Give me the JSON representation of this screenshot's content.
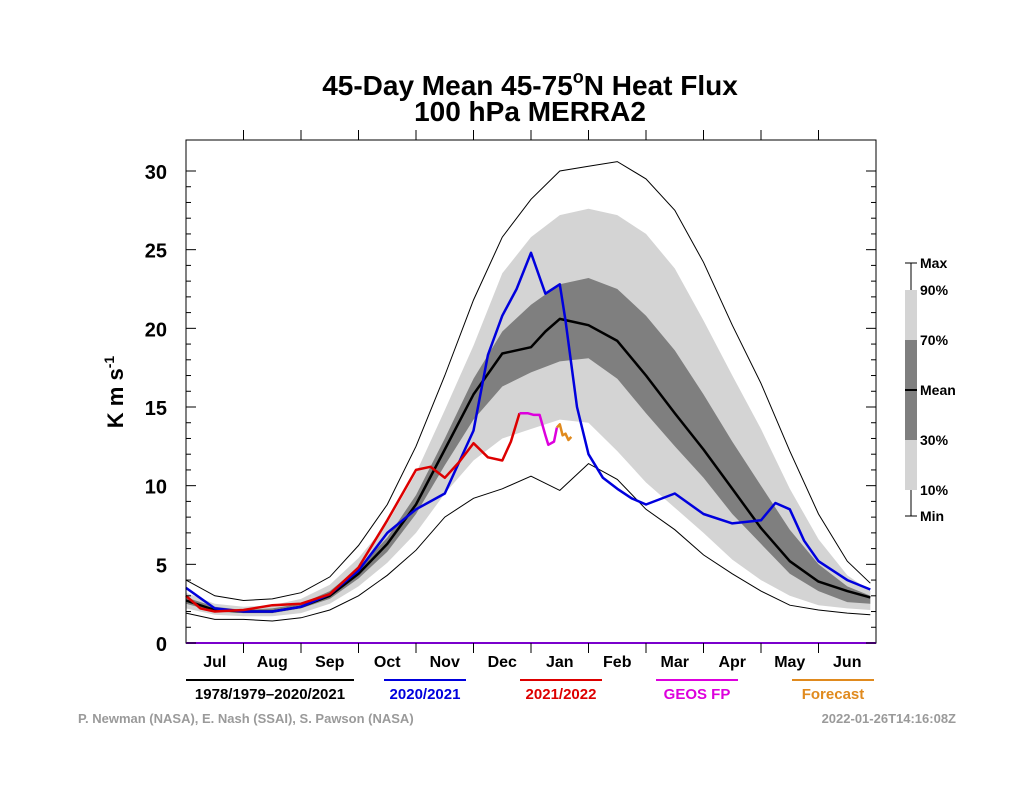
{
  "chart_data": {
    "type": "line",
    "title": "45-Day Mean 45-75",
    "title_sup": "o",
    "title_tail": "N Heat Flux",
    "subtitle": "100 hPa   MERRA2",
    "ylabel": "K m s",
    "ylabel_sup": "-1",
    "ylim": [
      0,
      31
    ],
    "yticks": [
      "0",
      "5",
      "10",
      "15",
      "20",
      "25",
      "30"
    ],
    "months": [
      "Jul",
      "Aug",
      "Sep",
      "Oct",
      "Nov",
      "Dec",
      "Jan",
      "Feb",
      "Mar",
      "Apr",
      "May",
      "Jun"
    ],
    "x_unit": "month index (0 = start of Jul, 12 = end of Jun)",
    "envelope": {
      "x": [
        0,
        0.5,
        1,
        1.5,
        2,
        2.5,
        3,
        3.5,
        4,
        4.5,
        5,
        5.5,
        6,
        6.5,
        7,
        7.5,
        8,
        8.5,
        9,
        9.5,
        10,
        10.5,
        11,
        11.5,
        11.9
      ],
      "max": [
        4.0,
        3.0,
        2.7,
        2.8,
        3.2,
        4.2,
        6.2,
        8.8,
        12.5,
        17.0,
        21.8,
        25.8,
        28.2,
        30.0,
        30.3,
        30.6,
        29.5,
        27.5,
        24.2,
        20.2,
        16.5,
        12.2,
        8.2,
        5.2,
        3.8
      ],
      "p90": [
        3.2,
        2.5,
        2.3,
        2.4,
        2.8,
        3.7,
        5.4,
        7.6,
        10.8,
        14.8,
        18.9,
        23.5,
        25.8,
        27.2,
        27.6,
        27.2,
        26.0,
        23.8,
        20.5,
        17.0,
        13.6,
        9.8,
        6.6,
        4.3,
        3.3
      ],
      "p70": [
        2.9,
        2.3,
        2.1,
        2.2,
        2.5,
        3.3,
        4.8,
        6.7,
        9.4,
        13.0,
        16.8,
        19.8,
        21.5,
        22.8,
        23.2,
        22.5,
        20.8,
        18.6,
        15.8,
        12.8,
        10.0,
        7.2,
        5.0,
        3.6,
        3.0
      ],
      "p30": [
        2.5,
        2.0,
        1.9,
        1.9,
        2.2,
        2.8,
        4.1,
        5.8,
        8.2,
        11.3,
        14.2,
        16.3,
        17.2,
        17.9,
        18.1,
        16.8,
        14.6,
        12.5,
        10.5,
        8.2,
        6.3,
        4.4,
        3.3,
        2.6,
        2.5
      ],
      "p10": [
        2.2,
        1.8,
        1.7,
        1.7,
        1.9,
        2.5,
        3.6,
        5.1,
        7.0,
        9.5,
        11.6,
        13.0,
        13.6,
        14.2,
        14.0,
        12.2,
        10.2,
        8.6,
        7.0,
        5.3,
        4.0,
        3.0,
        2.4,
        2.2,
        2.1
      ],
      "min": [
        1.9,
        1.5,
        1.5,
        1.4,
        1.6,
        2.1,
        3.0,
        4.3,
        5.9,
        8.0,
        9.2,
        9.8,
        10.6,
        9.7,
        11.4,
        10.4,
        8.5,
        7.2,
        5.6,
        4.4,
        3.3,
        2.4,
        2.1,
        1.9,
        1.8
      ]
    },
    "series": [
      {
        "name": "1978/1979–2020/2021",
        "color": "#000000",
        "x": [
          0,
          0.5,
          1,
          1.5,
          2,
          2.5,
          3,
          3.5,
          4,
          4.5,
          5,
          5.5,
          6,
          6.25,
          6.5,
          6.75,
          7,
          7.5,
          8,
          8.5,
          9,
          9.5,
          10,
          10.5,
          11,
          11.5,
          11.9
        ],
        "values": [
          2.7,
          2.1,
          2.0,
          2.0,
          2.3,
          3.0,
          4.4,
          6.3,
          8.8,
          12.3,
          15.8,
          18.4,
          18.8,
          19.8,
          20.6,
          20.4,
          20.2,
          19.2,
          17.0,
          14.6,
          12.3,
          9.8,
          7.3,
          5.2,
          3.9,
          3.3,
          2.9
        ]
      },
      {
        "name": "2020/2021",
        "color": "#0000dd",
        "x": [
          0,
          0.5,
          1,
          1.5,
          2,
          2.5,
          3,
          3.5,
          4,
          4.5,
          5,
          5.25,
          5.5,
          5.75,
          6,
          6.25,
          6.5,
          6.6,
          6.8,
          7,
          7.25,
          7.5,
          7.75,
          8,
          8.5,
          9,
          9.5,
          10,
          10.25,
          10.5,
          10.75,
          11,
          11.5,
          11.9
        ],
        "values": [
          3.5,
          2.2,
          2.0,
          2.0,
          2.3,
          3.1,
          4.6,
          7.0,
          8.5,
          9.5,
          13.5,
          18.3,
          20.8,
          22.5,
          24.8,
          22.2,
          22.8,
          20.5,
          15.0,
          12.0,
          10.5,
          9.8,
          9.2,
          8.8,
          9.5,
          8.2,
          7.6,
          7.8,
          8.9,
          8.5,
          6.5,
          5.2,
          4.0,
          3.4
        ]
      },
      {
        "name": "2021/2022",
        "color": "#dd0000",
        "x": [
          0,
          0.25,
          0.5,
          1,
          1.5,
          2,
          2.5,
          3,
          3.5,
          4,
          4.25,
          4.5,
          4.75,
          5,
          5.25,
          5.5,
          5.65,
          5.8
        ],
        "values": [
          3.0,
          2.2,
          2.0,
          2.1,
          2.4,
          2.5,
          3.1,
          4.8,
          7.8,
          11.0,
          11.2,
          10.5,
          11.5,
          12.7,
          11.8,
          11.6,
          12.8,
          14.6
        ]
      },
      {
        "name": "GEOS FP",
        "color": "#dd00dd",
        "x": [
          5.8,
          5.95,
          6.05,
          6.15,
          6.25,
          6.3,
          6.4,
          6.45
        ],
        "values": [
          14.6,
          14.6,
          14.5,
          14.5,
          13.2,
          12.6,
          12.8,
          13.7
        ]
      },
      {
        "name": "Forecast",
        "color": "#e08a1e",
        "x": [
          6.45,
          6.5,
          6.55,
          6.6,
          6.65,
          6.7
        ],
        "values": [
          13.7,
          13.9,
          13.2,
          13.3,
          12.9,
          13.1
        ]
      }
    ],
    "band_key": {
      "labels": [
        "Max",
        "90%",
        "70%",
        "Mean",
        "30%",
        "10%",
        "Min"
      ],
      "colors": {
        "outer": "#d4d4d4",
        "inner": "#7f7f7f"
      }
    },
    "legend": [
      {
        "label": "1978/1979–2020/2021",
        "color": "#000000"
      },
      {
        "label": "2020/2021",
        "color": "#0000dd"
      },
      {
        "label": "2021/2022",
        "color": "#dd0000"
      },
      {
        "label": "GEOS FP",
        "color": "#dd00dd"
      },
      {
        "label": "Forecast",
        "color": "#e08a1e"
      }
    ],
    "zero_line_color": "#7a00cc",
    "credits": "P. Newman (NASA), E. Nash (SSAI), S. Pawson (NASA)",
    "timestamp": "2022-01-26T14:16:08Z"
  }
}
